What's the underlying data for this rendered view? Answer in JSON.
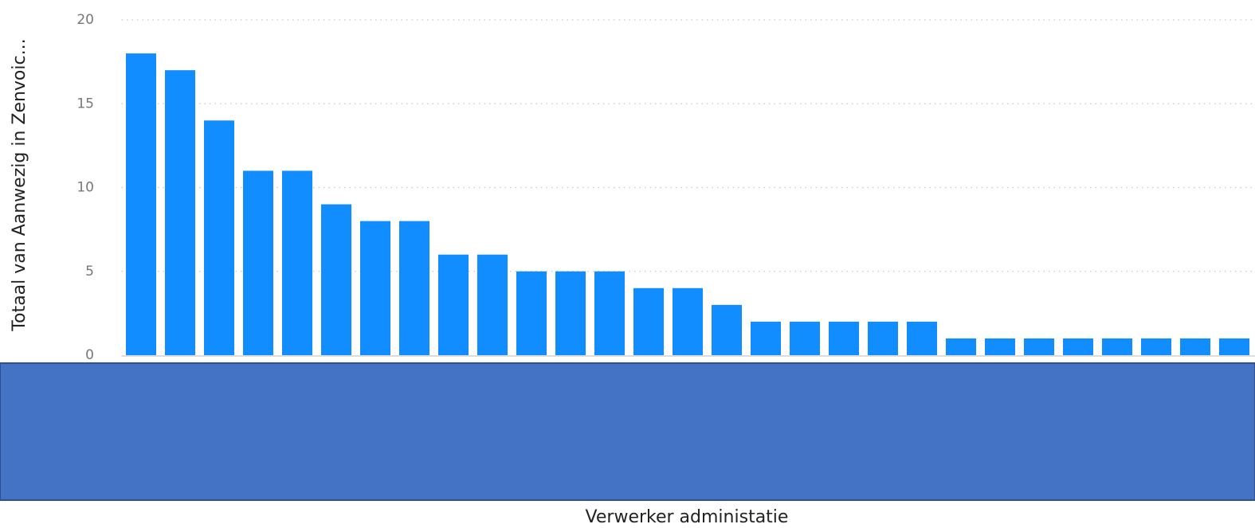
{
  "chart_data": {
    "type": "bar",
    "x_label": "Verwerker administatie",
    "y_label": "Totaal van Aanwezig in Zenvoic...",
    "categories": [
      null,
      null,
      null,
      null,
      null,
      null,
      null,
      null,
      null,
      null,
      null,
      null,
      null,
      null,
      null,
      null,
      null,
      null,
      null,
      null,
      null,
      null,
      null,
      null,
      null,
      null,
      null,
      null,
      null
    ],
    "values": [
      18,
      17,
      14,
      11,
      11,
      9,
      8,
      8,
      6,
      6,
      5,
      5,
      5,
      4,
      4,
      3,
      2,
      2,
      2,
      2,
      2,
      1,
      1,
      1,
      1,
      1,
      1,
      1,
      1
    ],
    "color": "#118dff",
    "ylim": [
      0,
      20
    ],
    "yticks": [
      0,
      5,
      10,
      15,
      20
    ],
    "grid": true
  }
}
